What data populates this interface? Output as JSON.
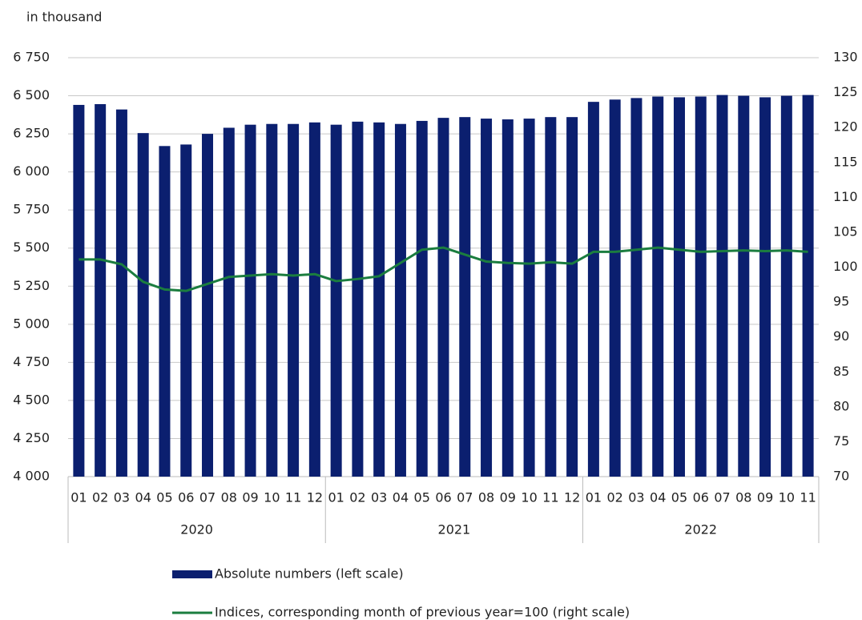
{
  "chart_data": {
    "type": "bar",
    "y_label": "in thousand",
    "groups": [
      {
        "label": "2020",
        "categories": [
          "01",
          "02",
          "03",
          "04",
          "05",
          "06",
          "07",
          "08",
          "09",
          "10",
          "11",
          "12"
        ]
      },
      {
        "label": "2021",
        "categories": [
          "01",
          "02",
          "03",
          "04",
          "05",
          "06",
          "07",
          "08",
          "09",
          "10",
          "11",
          "12"
        ]
      },
      {
        "label": "2022",
        "categories": [
          "01",
          "02",
          "03",
          "04",
          "05",
          "06",
          "07",
          "08",
          "09",
          "10",
          "11"
        ]
      }
    ],
    "series": [
      {
        "name": "Absolute numbers (left scale)",
        "type": "bar",
        "color": "#0b1f6f",
        "values": [
          6440,
          6445,
          6410,
          6255,
          6170,
          6180,
          6250,
          6290,
          6310,
          6315,
          6315,
          6325,
          6310,
          6330,
          6325,
          6315,
          6335,
          6355,
          6360,
          6350,
          6345,
          6350,
          6360,
          6360,
          6460,
          6475,
          6485,
          6495,
          6490,
          6495,
          6505,
          6500,
          6490,
          6500,
          6505
        ]
      },
      {
        "name": "Indices, corresponding month of previous year=100 (right scale)",
        "type": "line",
        "axis": "y2",
        "color": "#1b7d3f",
        "values": [
          101.1,
          101.1,
          100.4,
          97.9,
          96.8,
          96.6,
          97.6,
          98.6,
          98.8,
          99.0,
          98.8,
          99.0,
          98.0,
          98.3,
          98.7,
          100.6,
          102.5,
          102.8,
          101.8,
          100.8,
          100.6,
          100.5,
          100.7,
          100.5,
          102.2,
          102.2,
          102.5,
          102.8,
          102.5,
          102.2,
          102.3,
          102.4,
          102.3,
          102.4,
          102.2
        ]
      }
    ],
    "ylim": [
      4000,
      6750
    ],
    "yticks": [
      {
        "value": 4000,
        "label": "4 000"
      },
      {
        "value": 4250,
        "label": "4 250"
      },
      {
        "value": 4500,
        "label": "4 500"
      },
      {
        "value": 4750,
        "label": "4 750"
      },
      {
        "value": 5000,
        "label": "5 000"
      },
      {
        "value": 5250,
        "label": "5 250"
      },
      {
        "value": 5500,
        "label": "5 500"
      },
      {
        "value": 5750,
        "label": "5 750"
      },
      {
        "value": 6000,
        "label": "6 000"
      },
      {
        "value": 6250,
        "label": "6 250"
      },
      {
        "value": 6500,
        "label": "6 500"
      },
      {
        "value": 6750,
        "label": "6 750"
      }
    ],
    "y2lim": [
      70,
      130
    ],
    "y2ticks": [
      70,
      75,
      80,
      85,
      90,
      95,
      100,
      105,
      110,
      115,
      120,
      125,
      130
    ],
    "grid": true
  }
}
